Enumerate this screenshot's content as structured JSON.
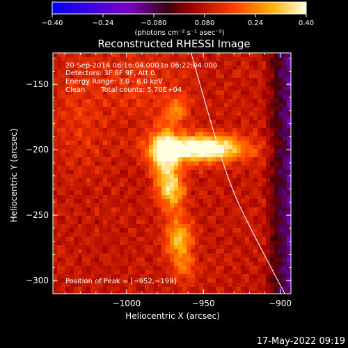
{
  "chart_data": {
    "type": "heatmap",
    "title": "Reconstructed RHESSI Image",
    "xlabel": "Heliocentric X (arcsec)",
    "ylabel": "Heliocentric Y (arcsec)",
    "xlim": [
      -1048,
      -893
    ],
    "ylim": [
      -310,
      -126
    ],
    "xticks": [
      -1000,
      -950,
      -900
    ],
    "xtick_labels": [
      "−1000",
      "−950",
      "−900"
    ],
    "yticks": [
      -150,
      -200,
      -250,
      -300
    ],
    "ytick_labels": [
      "−150",
      "−200",
      "−250",
      "−300"
    ],
    "colorbar": {
      "range": [
        -0.4,
        0.4
      ],
      "ticks": [
        -0.4,
        -0.24,
        -0.08,
        0.08,
        0.24,
        0.4
      ],
      "tick_labels": [
        "−0.40",
        "−0.24",
        "−0.080",
        "0.080",
        "0.24",
        "0.40"
      ],
      "unit_label": "(photons cm⁻² s⁻¹ asec⁻²)",
      "colormap": "blue-purple-red-orange-yellow-white"
    },
    "annotations": [
      "20-Sep-2014 06:16:04.000 to 06:22:04.000",
      "Detectors: 3F 6F 9F, Att 0",
      "Energy Range: 3.0 - 6.0 keV",
      "Clean",
      "Total counts: 5.70E+04"
    ],
    "peak_label": "Position of Peak = [−952,−199]",
    "peak": [
      -952,
      -199
    ],
    "limb_curve": [
      [
        -958,
        -126
      ],
      [
        -945,
        -180
      ],
      [
        -932,
        -230
      ],
      [
        -915,
        -270
      ],
      [
        -897,
        -310
      ]
    ],
    "sources": [
      {
        "x": -952,
        "y": -199,
        "sx": 20,
        "sy": 7,
        "amp": 0.4
      },
      {
        "x": -975,
        "y": -205,
        "sx": 6,
        "sy": 16,
        "amp": 0.26
      },
      {
        "x": -970,
        "y": -232,
        "sx": 6,
        "sy": 11,
        "amp": 0.2
      },
      {
        "x": -966,
        "y": -268,
        "sx": 6,
        "sy": 11,
        "amp": 0.22
      },
      {
        "x": -962,
        "y": -290,
        "sx": 5,
        "sy": 8,
        "amp": 0.12
      },
      {
        "x": -967,
        "y": -170,
        "sx": 5,
        "sy": 7,
        "amp": 0.13
      },
      {
        "x": -990,
        "y": -150,
        "sx": 20,
        "sy": 18,
        "amp": 0.06
      },
      {
        "x": -1030,
        "y": -175,
        "sx": 12,
        "sy": 30,
        "amp": 0.05
      }
    ],
    "background": 0.09,
    "dark_edge_x": -912
  },
  "footer": {
    "timestamp": "17-May-2022 09:19"
  }
}
